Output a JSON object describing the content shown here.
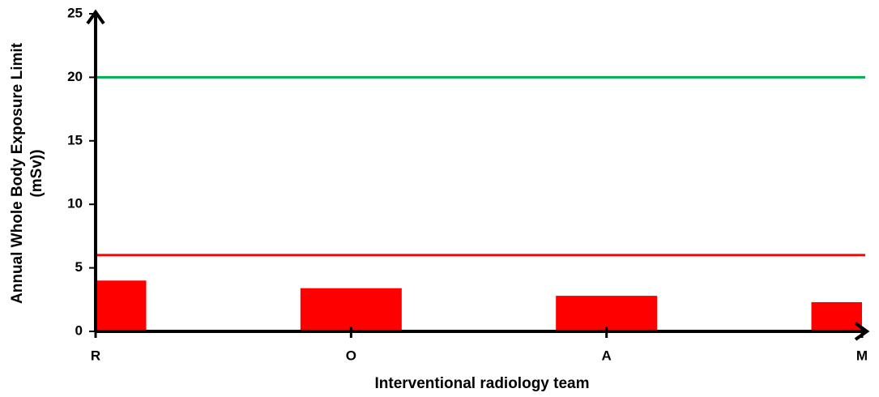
{
  "chart_data": {
    "type": "bar",
    "xlabel": "Interventional radiology team",
    "ylabel": [
      "Annual Whole Body Exposure Limit",
      "(mSv))"
    ],
    "categories": [
      "R",
      "O",
      "A",
      "M"
    ],
    "values": [
      4.0,
      3.4,
      2.8,
      2.3
    ],
    "color": "#ff0000",
    "ylim": [
      0,
      25
    ],
    "yticks": [
      0,
      5,
      10,
      15,
      20,
      25
    ],
    "reference_lines": [
      {
        "value": 20,
        "color": "#00b050"
      },
      {
        "value": 6,
        "color": "#ff0000"
      }
    ],
    "grid": false
  }
}
